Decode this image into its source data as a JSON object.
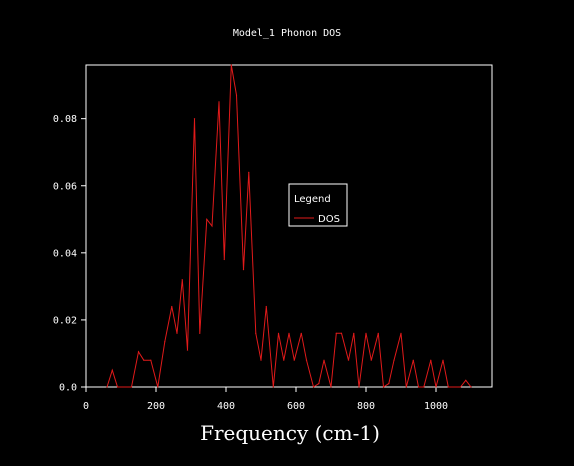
{
  "chart_data": {
    "type": "line",
    "title": "Model_1 Phonon DOS",
    "xlabel": "Frequency (cm-1)",
    "ylabel": "",
    "xlim": [
      0,
      1160
    ],
    "ylim": [
      0,
      0.096
    ],
    "x_ticks": [
      0,
      200,
      400,
      600,
      800,
      1000
    ],
    "y_ticks": [
      0.0,
      0.02,
      0.04,
      0.06,
      0.08
    ],
    "x_tick_labels": [
      "0",
      "200",
      "400",
      "600",
      "800",
      "1000"
    ],
    "y_tick_labels": [
      "0.0",
      "0.02",
      "0.04",
      "0.06",
      "0.08"
    ],
    "legend": {
      "title": "Legend",
      "placement": "center-right"
    },
    "grid": false,
    "series": [
      {
        "name": "DOS",
        "color": "#e11a1a",
        "points": [
          [
            60,
            0.0
          ],
          [
            75,
            0.005
          ],
          [
            90,
            0.0
          ],
          [
            130,
            0.0
          ],
          [
            150,
            0.0105
          ],
          [
            165,
            0.008
          ],
          [
            185,
            0.008
          ],
          [
            205,
            0.0
          ],
          [
            225,
            0.0135
          ],
          [
            245,
            0.024
          ],
          [
            260,
            0.016
          ],
          [
            275,
            0.032
          ],
          [
            290,
            0.011
          ],
          [
            310,
            0.08
          ],
          [
            325,
            0.016
          ],
          [
            345,
            0.05
          ],
          [
            360,
            0.048
          ],
          [
            380,
            0.085
          ],
          [
            395,
            0.038
          ],
          [
            415,
            0.096
          ],
          [
            430,
            0.087
          ],
          [
            450,
            0.035
          ],
          [
            465,
            0.064
          ],
          [
            485,
            0.016
          ],
          [
            500,
            0.008
          ],
          [
            515,
            0.024
          ],
          [
            535,
            0.0
          ],
          [
            550,
            0.016
          ],
          [
            565,
            0.008
          ],
          [
            580,
            0.016
          ],
          [
            595,
            0.008
          ],
          [
            615,
            0.016
          ],
          [
            630,
            0.008
          ],
          [
            650,
            0.0
          ],
          [
            665,
            0.001
          ],
          [
            680,
            0.008
          ],
          [
            700,
            0.0
          ],
          [
            715,
            0.016
          ],
          [
            730,
            0.016
          ],
          [
            750,
            0.008
          ],
          [
            765,
            0.016
          ],
          [
            780,
            0.0
          ],
          [
            800,
            0.016
          ],
          [
            815,
            0.008
          ],
          [
            835,
            0.016
          ],
          [
            850,
            0.0
          ],
          [
            865,
            0.001
          ],
          [
            880,
            0.008
          ],
          [
            900,
            0.016
          ],
          [
            915,
            0.0
          ],
          [
            935,
            0.008
          ],
          [
            950,
            0.0
          ],
          [
            965,
            0.0
          ],
          [
            985,
            0.008
          ],
          [
            1000,
            0.0
          ],
          [
            1020,
            0.008
          ],
          [
            1035,
            0.0
          ],
          [
            1070,
            0.0
          ],
          [
            1085,
            0.002
          ],
          [
            1100,
            0.0
          ]
        ]
      }
    ]
  }
}
